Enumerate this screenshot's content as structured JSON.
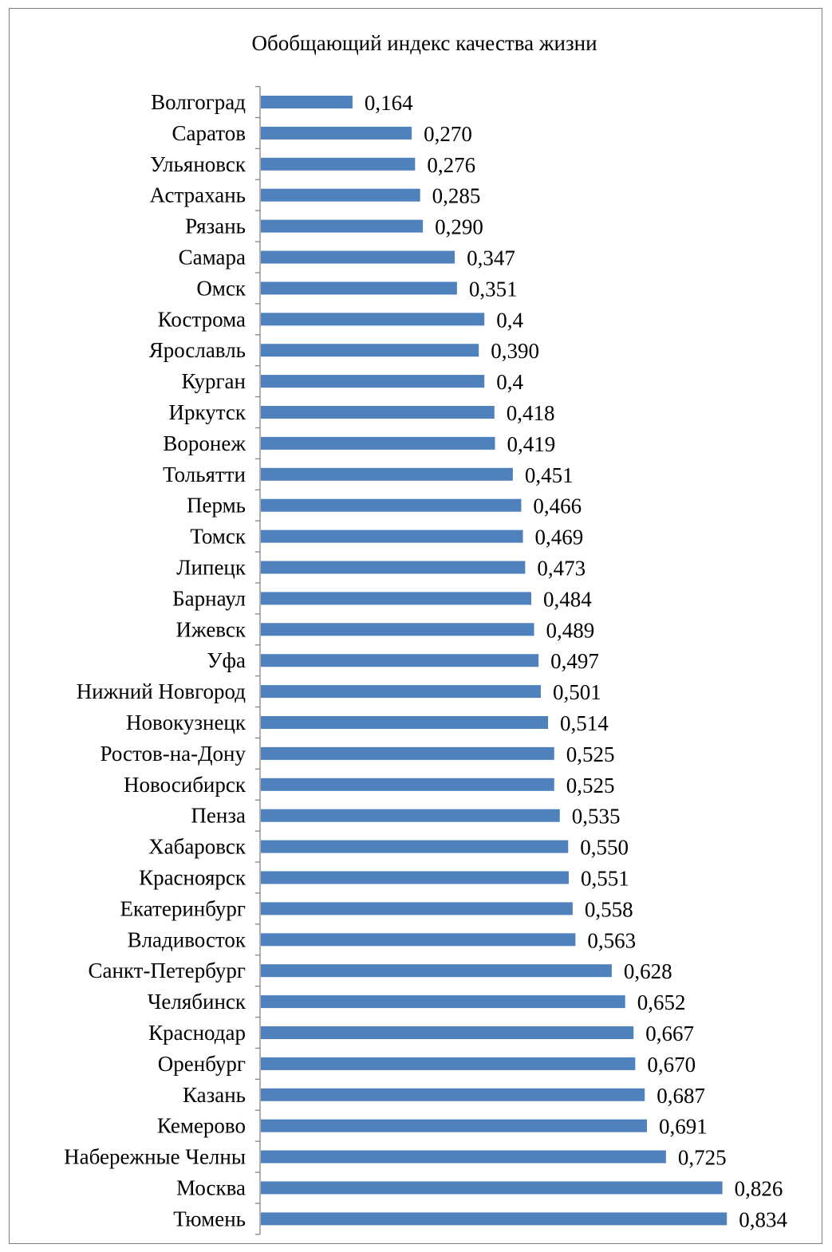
{
  "chart_data": {
    "type": "bar",
    "orientation": "horizontal",
    "title": "Обобщающий индекс качества жизни",
    "bar_color": "#4f81bd",
    "grid": false,
    "legend": "none",
    "xlim": [
      0,
      0.834
    ],
    "categories": [
      "Волгоград",
      "Саратов",
      "Ульяновск",
      "Астрахань",
      "Рязань",
      "Самара",
      "Омск",
      "Кострома",
      "Ярославль",
      "Курган",
      "Иркутск",
      "Воронеж",
      "Тольятти",
      "Пермь",
      "Томск",
      "Липецк",
      "Барнаул",
      "Ижевск",
      "Уфа",
      "Нижний Новгород",
      "Новокузнецк",
      "Ростов-на-Дону",
      "Новосибирск",
      "Пенза",
      "Хабаровск",
      "Красноярск",
      "Екатеринбург",
      "Владивосток",
      "Санкт-Петербург",
      "Челябинск",
      "Краснодар",
      "Оренбург",
      "Казань",
      "Кемерово",
      "Набережные Челны",
      "Москва",
      "Тюмень"
    ],
    "values": [
      0.164,
      0.27,
      0.276,
      0.285,
      0.29,
      0.347,
      0.351,
      0.4,
      0.39,
      0.4,
      0.418,
      0.419,
      0.451,
      0.466,
      0.469,
      0.473,
      0.484,
      0.489,
      0.497,
      0.501,
      0.514,
      0.525,
      0.525,
      0.535,
      0.55,
      0.551,
      0.558,
      0.563,
      0.628,
      0.652,
      0.667,
      0.67,
      0.687,
      0.691,
      0.725,
      0.826,
      0.834
    ],
    "value_labels": [
      "0,164",
      "0,270",
      "0,276",
      "0,285",
      "0,290",
      "0,347",
      "0,351",
      "0,4",
      "0,390",
      "0,4",
      "0,418",
      "0,419",
      "0,451",
      "0,466",
      "0,469",
      "0,473",
      "0,484",
      "0,489",
      "0,497",
      "0,501",
      "0,514",
      "0,525",
      "0,525",
      "0,535",
      "0,550",
      "0,551",
      "0,558",
      "0,563",
      "0,628",
      "0,652",
      "0,667",
      "0,670",
      "0,687",
      "0,691",
      "0,725",
      "0,826",
      "0,834"
    ]
  }
}
